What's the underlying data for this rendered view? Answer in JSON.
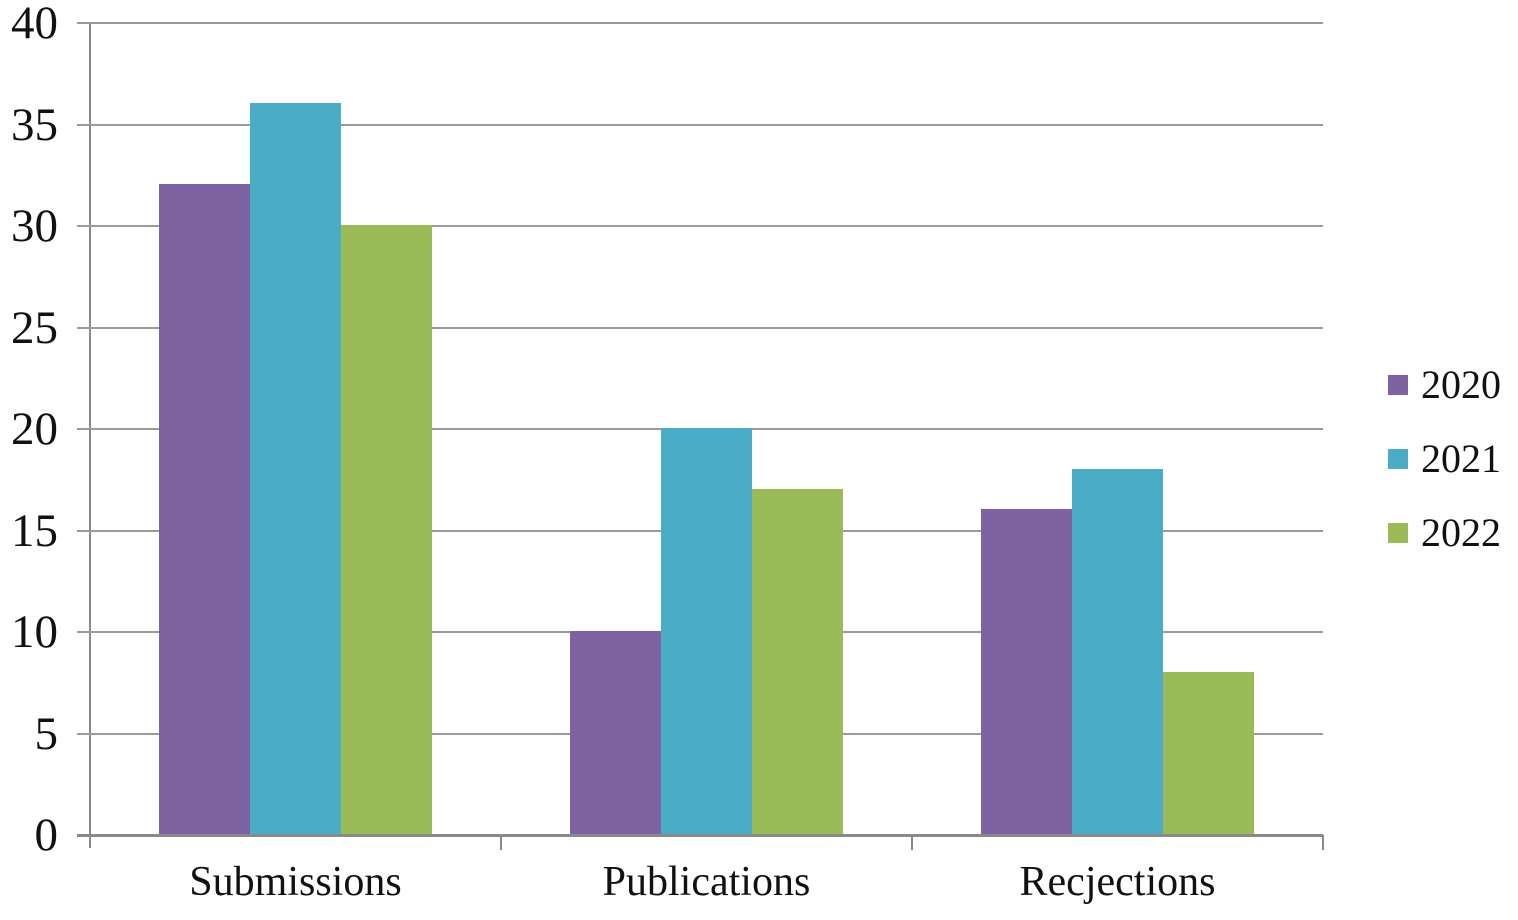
{
  "chart_data": {
    "type": "bar",
    "categories": [
      "Submissions",
      "Publications",
      "Recjections"
    ],
    "series": [
      {
        "name": "2020",
        "color": "#7E63A2",
        "values": [
          32,
          10,
          16
        ]
      },
      {
        "name": "2021",
        "color": "#4AACC5",
        "values": [
          36,
          20,
          18
        ]
      },
      {
        "name": "2022",
        "color": "#9BBB59",
        "values": [
          30,
          17,
          8
        ]
      }
    ],
    "title": "",
    "xlabel": "",
    "ylabel": "",
    "ylim": [
      0,
      40
    ],
    "yticks": [
      40,
      35,
      30,
      25,
      20,
      15,
      10,
      5,
      0
    ],
    "grid": true,
    "legend_position": "right",
    "gridline_color": "#9A9A9A",
    "axis_color": "#8A8A8A",
    "text_color": "#111111",
    "background_color": "#FFFFFF"
  }
}
